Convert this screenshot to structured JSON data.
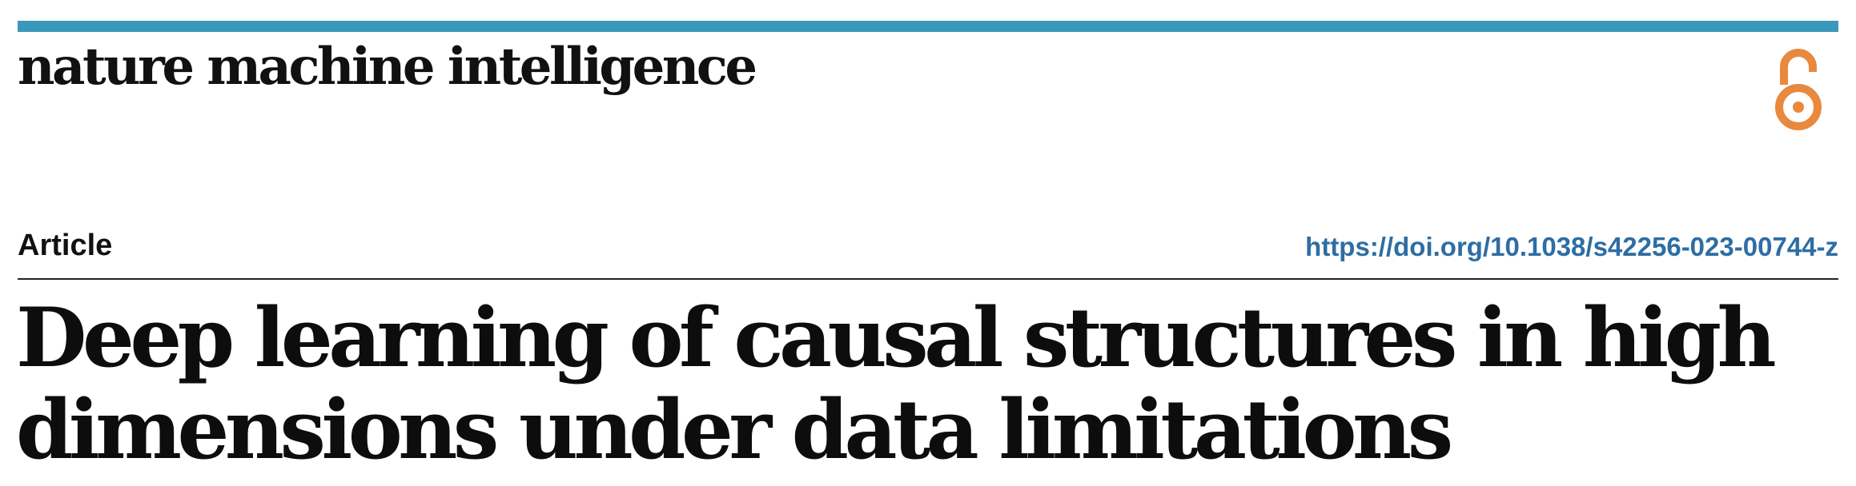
{
  "header": {
    "journal_name": "nature machine intelligence",
    "accent_color": "#3a98b9",
    "open_access_icon": "open-access-icon",
    "open_access_color": "#e8893d"
  },
  "meta": {
    "article_type": "Article",
    "doi": "https://doi.org/10.1038/s42256-023-00744-z"
  },
  "paper": {
    "title_line1": "Deep learning of causal structures in high",
    "title_line2": "dimensions under data limitations"
  }
}
